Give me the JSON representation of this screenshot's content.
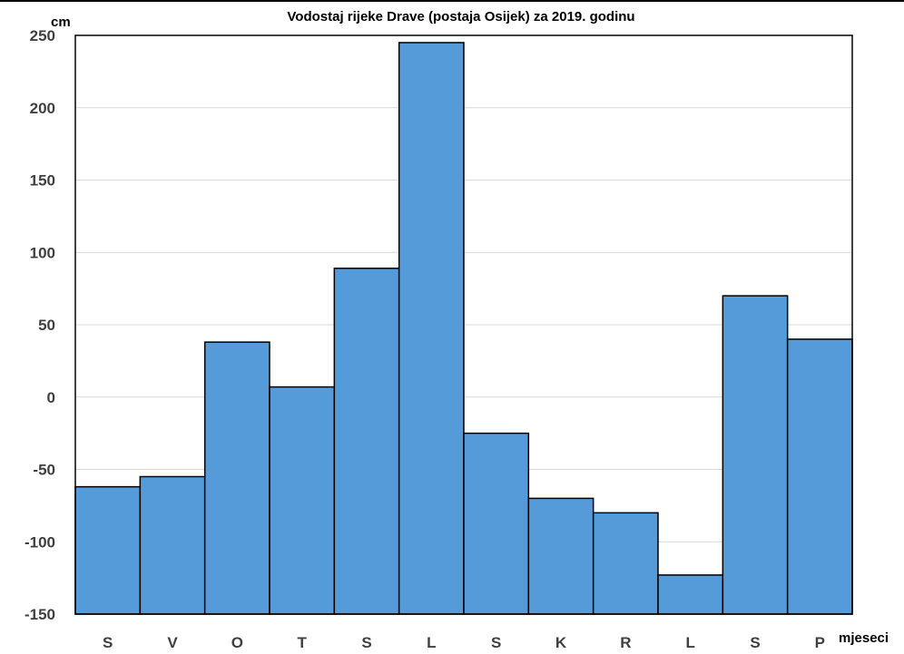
{
  "chart_data": {
    "type": "bar",
    "title": "Vodostaj rijeke Drave (postaja Osijek) za 2019. godinu",
    "ylabel": "cm",
    "xlabel": "mjeseci",
    "categories": [
      "S",
      "V",
      "O",
      "T",
      "S",
      "L",
      "S",
      "K",
      "R",
      "L",
      "S",
      "P"
    ],
    "values": [
      -62,
      -55,
      38,
      7,
      89,
      245,
      -25,
      -70,
      -80,
      -123,
      70,
      40
    ],
    "ylim": [
      -150,
      250
    ],
    "yticks": [
      250,
      200,
      150,
      100,
      50,
      0,
      -50,
      -100,
      -150
    ],
    "grid": true,
    "legend": "none",
    "bar_color": "#559AD9",
    "bar_edge_color": "#000000"
  }
}
